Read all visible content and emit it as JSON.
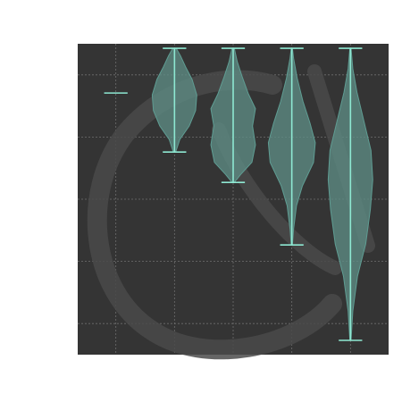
{
  "chart_data": {
    "type": "violin",
    "title": "",
    "xlabel": "",
    "ylabel": "",
    "grid": true,
    "ylim": [
      0,
      1
    ],
    "colors": {
      "plot_background": "#343434",
      "grid": "#6e6e6e",
      "violin_fill": "#5d8c84",
      "violin_stroke": "#5f9d93",
      "whisker": "#8ee8d2",
      "watermark": "#4a4a4a"
    },
    "series": [
      {
        "x": 1,
        "min": 0.8416,
        "max": 0.8416
      },
      {
        "x": 2,
        "min": 0.6518,
        "max": 0.9854
      },
      {
        "x": 3,
        "min": 0.5541,
        "max": 0.9854
      },
      {
        "x": 4,
        "min": 0.3528,
        "max": 0.9854
      },
      {
        "x": 5,
        "min": 0.046,
        "max": 0.9854
      }
    ]
  }
}
